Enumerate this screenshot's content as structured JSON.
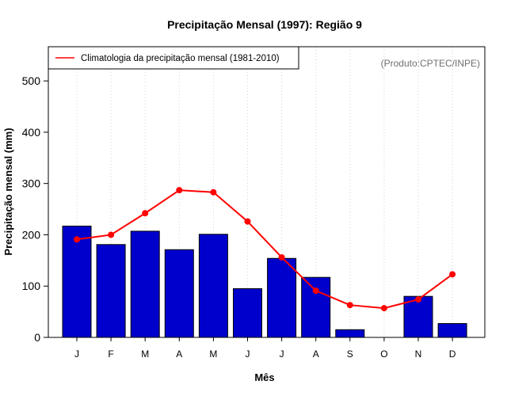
{
  "chart_data": {
    "type": "bar",
    "title": "Precipitação Mensal (1997): Região 9",
    "xlabel": "Mês",
    "ylabel": "Precipitação mensal (mm)",
    "ylim": [
      0,
      550
    ],
    "yticks": [
      0,
      100,
      200,
      300,
      400,
      500
    ],
    "categories": [
      "J",
      "F",
      "M",
      "A",
      "M",
      "J",
      "J",
      "A",
      "S",
      "O",
      "N",
      "D"
    ],
    "series": [
      {
        "name": "Precipitação mensal 1997",
        "type": "bar",
        "color": "#0000cd",
        "values": [
          217,
          181,
          207,
          171,
          201,
          95,
          154,
          117,
          15,
          0,
          80,
          27
        ]
      },
      {
        "name": "Climatologia da precipitação mensal (1981-2010)",
        "type": "line",
        "color": "#ff0000",
        "values": [
          191,
          200,
          242,
          287,
          283,
          226,
          156,
          91,
          63,
          57,
          74,
          123
        ]
      }
    ],
    "legend": {
      "position": "top-left",
      "label": "Climatologia da precipitação mensal (1981-2010)"
    },
    "credit": "(Produto:CPTEC/INPE)",
    "grid": "vertical dotted"
  }
}
